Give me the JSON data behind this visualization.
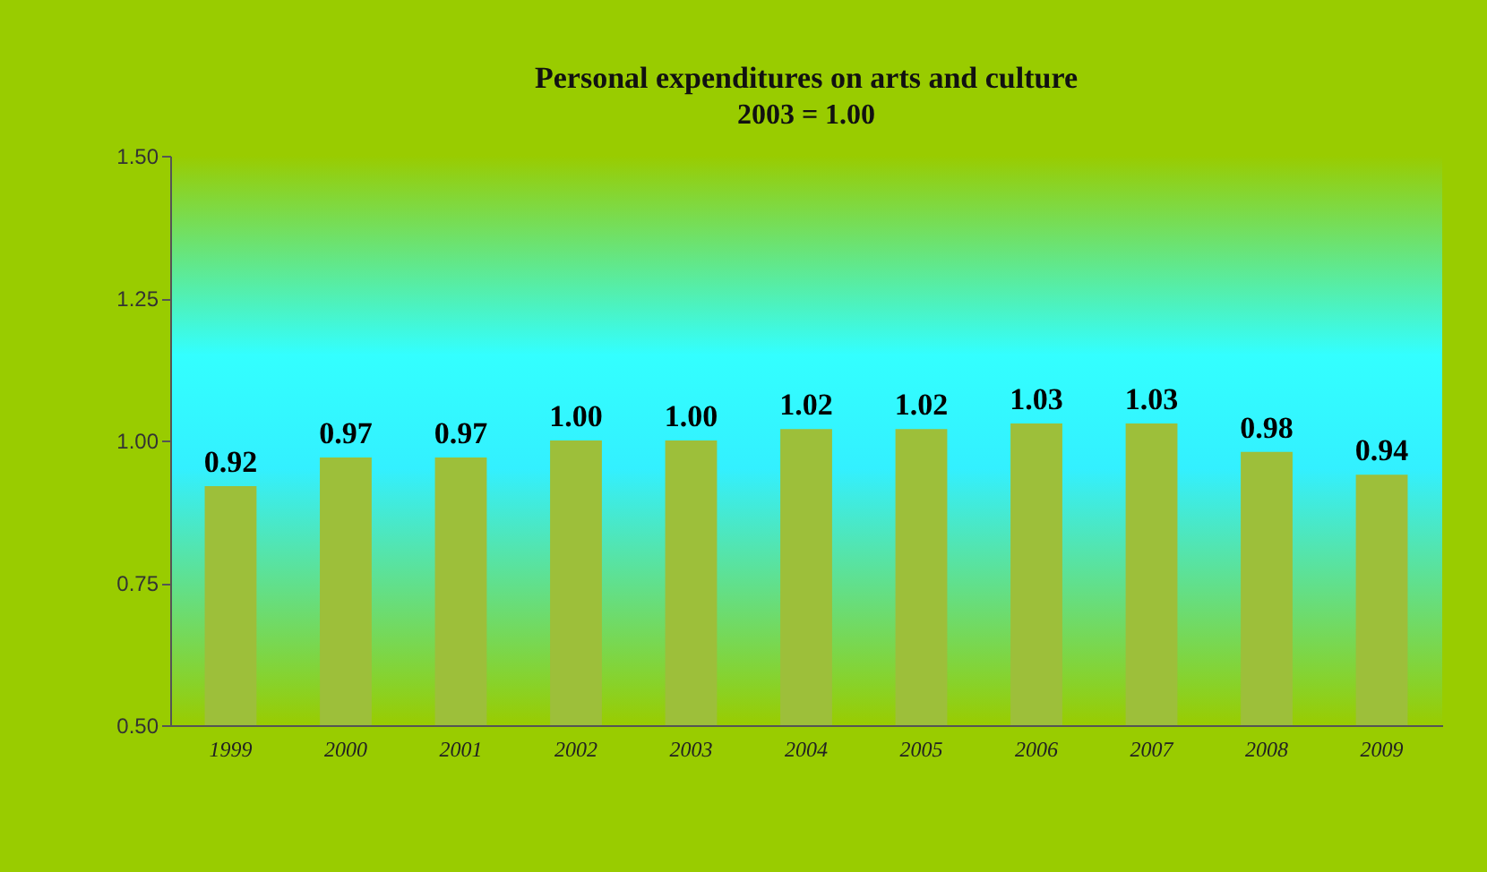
{
  "chart_data": {
    "type": "bar",
    "title": "Personal expenditures on arts and culture",
    "subtitle": "2003 = 1.00",
    "categories": [
      "1999",
      "2000",
      "2001",
      "2002",
      "2003",
      "2004",
      "2005",
      "2006",
      "2007",
      "2008",
      "2009"
    ],
    "values": [
      0.92,
      0.97,
      0.97,
      1.0,
      1.0,
      1.02,
      1.02,
      1.03,
      1.03,
      0.98,
      0.94
    ],
    "color": "#9dbf3a",
    "ylim": [
      0.5,
      1.5
    ],
    "yticks": [
      {
        "value": 0.5,
        "label": "0.50"
      },
      {
        "value": 0.75,
        "label": "0.75"
      },
      {
        "value": 1,
        "label": "1.00"
      },
      {
        "value": 1.25,
        "label": "1.25"
      },
      {
        "value": 1.5,
        "label": "1.50"
      }
    ],
    "value_labels": [
      "0.92",
      "0.97",
      "0.97",
      "1.00",
      "1.00",
      "1.02",
      "1.02",
      "1.03",
      "1.03",
      "0.98",
      "0.94"
    ],
    "grid": false
  }
}
